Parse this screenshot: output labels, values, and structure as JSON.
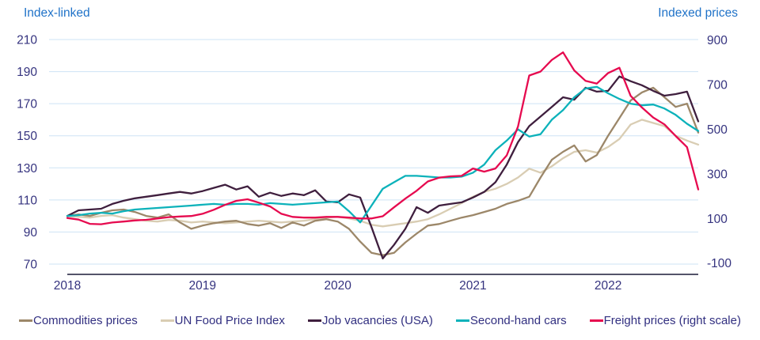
{
  "chart_data": {
    "type": "line",
    "title": "",
    "left_axis": {
      "title": "Index-linked",
      "ticks": [
        210,
        190,
        170,
        150,
        130,
        110,
        90,
        70
      ],
      "range": [
        70,
        210
      ]
    },
    "right_axis": {
      "title": "Indexed prices",
      "ticks": [
        900,
        700,
        500,
        300,
        100,
        -100
      ],
      "range": [
        -100,
        900
      ]
    },
    "x_tick_labels": [
      "2018",
      "2019",
      "2020",
      "2021",
      "2022"
    ],
    "grid": true,
    "legend_position": "bottom",
    "frequency": "monthly",
    "months": [
      "2018-01",
      "2018-02",
      "2018-03",
      "2018-04",
      "2018-05",
      "2018-06",
      "2018-07",
      "2018-08",
      "2018-09",
      "2018-10",
      "2018-11",
      "2018-12",
      "2019-01",
      "2019-02",
      "2019-03",
      "2019-04",
      "2019-05",
      "2019-06",
      "2019-07",
      "2019-08",
      "2019-09",
      "2019-10",
      "2019-11",
      "2019-12",
      "2020-01",
      "2020-02",
      "2020-03",
      "2020-04",
      "2020-05",
      "2020-06",
      "2020-07",
      "2020-08",
      "2020-09",
      "2020-10",
      "2020-11",
      "2020-12",
      "2021-01",
      "2021-02",
      "2021-03",
      "2021-04",
      "2021-05",
      "2021-06",
      "2021-07",
      "2021-08",
      "2021-09",
      "2021-10",
      "2021-11",
      "2021-12",
      "2022-01",
      "2022-02",
      "2022-03",
      "2022-04",
      "2022-05",
      "2022-06",
      "2022-07",
      "2022-08",
      "2022-09"
    ],
    "series": [
      {
        "name": "Commodities prices",
        "color": "#9c8769",
        "axis": "left",
        "values": [
          100,
          101,
          100,
          102,
          103.5,
          104,
          102.5,
          100,
          99,
          101,
          96,
          92,
          94,
          95.5,
          96.5,
          97,
          95,
          94,
          95.5,
          92.5,
          96,
          94,
          97,
          98,
          96.5,
          92,
          84,
          77,
          75.5,
          77,
          83.5,
          89,
          94,
          95,
          97,
          99,
          100.5,
          102.5,
          104.5,
          107.5,
          109.5,
          112,
          124,
          135,
          140,
          144,
          134,
          138,
          150,
          161,
          172,
          177,
          180,
          174,
          168,
          170,
          152
        ]
      },
      {
        "name": "UN Food Price Index",
        "color": "#d9cdb3",
        "axis": "left",
        "values": [
          100,
          99.5,
          99,
          100,
          100.5,
          99,
          98,
          97,
          96.5,
          97.5,
          97,
          96,
          96.5,
          96,
          95.5,
          96,
          96.5,
          97,
          96.5,
          96,
          96.5,
          97,
          98,
          99,
          99.5,
          98.5,
          97,
          94.5,
          93.5,
          94.5,
          95.5,
          96.5,
          98,
          101,
          104.5,
          108,
          112,
          115,
          117,
          120,
          124,
          129.5,
          127,
          131,
          136,
          140,
          141,
          139.5,
          143,
          148,
          157,
          160,
          158,
          156,
          150,
          147,
          144.5
        ]
      },
      {
        "name": "Job vacancies (USA)",
        "color": "#3f1f3e",
        "axis": "left",
        "values": [
          100,
          103.5,
          104,
          104.5,
          107.5,
          109.5,
          111,
          112,
          113,
          114,
          115,
          114,
          115.5,
          117.5,
          119.5,
          116.5,
          118.5,
          112,
          114.5,
          112.5,
          114,
          113,
          116,
          109,
          108.5,
          113.5,
          111.5,
          93,
          73.5,
          82,
          92,
          105.5,
          102,
          106.5,
          107.5,
          108.5,
          111.5,
          115,
          121,
          132,
          146,
          156,
          162,
          168,
          174,
          172.5,
          180,
          177.5,
          178,
          187,
          184,
          181.5,
          178,
          175,
          176,
          177.5,
          159
        ]
      },
      {
        "name": "Second-hand cars",
        "color": "#0cb2ba",
        "axis": "left",
        "values": [
          100,
          100.5,
          101.5,
          102,
          101.5,
          103,
          104,
          104.5,
          105,
          105.5,
          106,
          106.5,
          107,
          107.5,
          107,
          107.5,
          107.5,
          107,
          108,
          107.5,
          107,
          107.5,
          108,
          108.5,
          109,
          103,
          96,
          106.5,
          117,
          121,
          125,
          125,
          124.5,
          124,
          124,
          124.5,
          127,
          132,
          141,
          147,
          154,
          149.5,
          151,
          160,
          166,
          174,
          179.5,
          180.5,
          176.5,
          173,
          170,
          169,
          169.5,
          167,
          163,
          157.5,
          153
        ]
      },
      {
        "name": "Freight prices (right scale)",
        "color": "#e60a4f",
        "axis": "right",
        "values": [
          102,
          95,
          76,
          74,
          82,
          86,
          91,
          94,
          100,
          106,
          109,
          111,
          121,
          139,
          161,
          179,
          186,
          171,
          154,
          121,
          107,
          104,
          104,
          107,
          107,
          104,
          100,
          100,
          110,
          150,
          189,
          224,
          266,
          283,
          289,
          291,
          324,
          310,
          324,
          383,
          512,
          741,
          759,
          811,
          845,
          764,
          717,
          705,
          752,
          776,
          650,
          598,
          553,
          522,
          470,
          420,
          230
        ]
      }
    ],
    "style": {
      "gridline_color": "#cde3f5",
      "axis_text_color": "#35337f",
      "axis_title_color": "#1f72c8",
      "baseline_color": "#1b1b38",
      "background": "#ffffff"
    }
  }
}
